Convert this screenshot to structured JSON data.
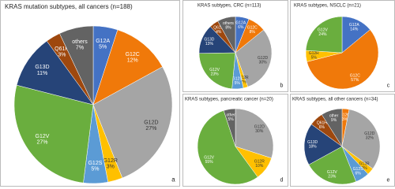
{
  "chart_data": [
    {
      "type": "pie",
      "title": "KRAS mutation subtypes, all cancers (n=188)",
      "panel_label": "a",
      "categories": [
        "G12A",
        "G12C",
        "G12D",
        "G12R",
        "G12S",
        "G12V",
        "G13D",
        "Q61H",
        "others"
      ],
      "values": [
        5,
        12,
        27,
        3,
        5,
        27,
        11,
        3,
        7
      ],
      "value_labels": [
        "5%",
        "12%",
        "27%",
        "3%",
        "5%",
        "27%",
        "11%",
        "3%",
        "7%"
      ],
      "colors": [
        "#4472c4",
        "#f0790a",
        "#a5a5a5",
        "#ffc000",
        "#5b9bd5",
        "#6aae3e",
        "#264478",
        "#9e480e",
        "#636363"
      ]
    },
    {
      "type": "pie",
      "title": "KRAS subtypes, CRC (n=113)",
      "panel_label": "b",
      "categories": [
        "G12A",
        "G12C",
        "G12D",
        "G12R",
        "G12S",
        "G12V",
        "G13D",
        "Q61H",
        "others"
      ],
      "values": [
        6,
        8,
        30,
        2,
        5,
        23,
        13,
        4,
        8
      ],
      "value_labels": [
        "6%",
        "8%",
        "30%",
        "2%",
        "5%",
        "23%",
        "13%",
        "4%",
        "8%"
      ],
      "colors": [
        "#4472c4",
        "#f0790a",
        "#a5a5a5",
        "#ffc000",
        "#5b9bd5",
        "#6aae3e",
        "#264478",
        "#9e480e",
        "#636363"
      ]
    },
    {
      "type": "pie",
      "title": "KRAS subtypes, NSCLC (n=21)",
      "panel_label": "c",
      "categories": [
        "G12A",
        "G12C",
        "G12R",
        "G12V"
      ],
      "values": [
        14,
        57,
        5,
        24
      ],
      "value_labels": [
        "14%",
        "57%",
        "5%",
        "24%"
      ],
      "colors": [
        "#4472c4",
        "#f0790a",
        "#ffc000",
        "#6aae3e"
      ]
    },
    {
      "type": "pie",
      "title": "KRAS subtypes, pancreatic cancer (n=20)",
      "panel_label": "d",
      "categories": [
        "G12D",
        "G12R",
        "G12V",
        "other"
      ],
      "values": [
        30,
        10,
        55,
        5
      ],
      "value_labels": [
        "30%",
        "10%",
        "55%",
        "5%"
      ],
      "colors": [
        "#a5a5a5",
        "#ffc000",
        "#6aae3e",
        "#636363"
      ]
    },
    {
      "type": "pie",
      "title": "KRAS subtypes, all other cancers (n=34)",
      "panel_label": "e",
      "categories": [
        "G12C",
        "G12D",
        "G12R",
        "G12S",
        "G12V",
        "G13D",
        "Q61H",
        "other"
      ],
      "values": [
        3,
        32,
        3,
        6,
        23,
        18,
        6,
        9
      ],
      "value_labels": [
        "3%",
        "32%",
        "3%",
        "6%",
        "23%",
        "18%",
        "6%",
        "9%"
      ],
      "colors": [
        "#f0790a",
        "#a5a5a5",
        "#ffc000",
        "#5b9bd5",
        "#6aae3e",
        "#264478",
        "#9e480e",
        "#636363"
      ]
    }
  ]
}
